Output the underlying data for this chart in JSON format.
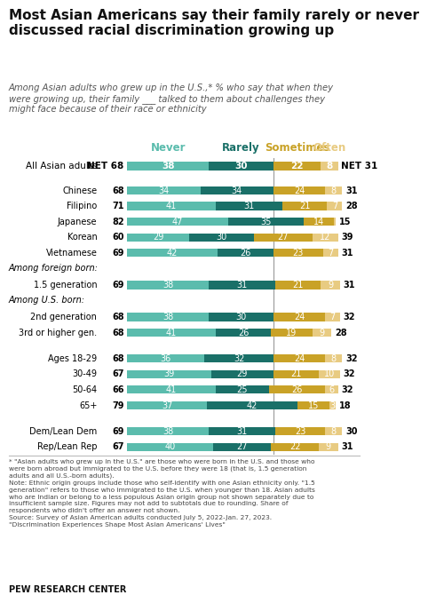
{
  "title": "Most Asian Americans say their family rarely or never\ndiscussed racial discrimination growing up",
  "subtitle": "Among Asian adults who grew up in the U.S.,* % who say that when they\nwere growing up, their family ___ talked to them about challenges they\nmight face because of their race or ethnicity",
  "categories": [
    "All Asian adults",
    "Chinese",
    "Filipino",
    "Japanese",
    "Korean",
    "Vietnamese",
    "1.5 generation",
    "2nd generation",
    "3rd or higher gen.",
    "Ages 18-29",
    "30-49",
    "50-64",
    "65+",
    "Dem/Lean Dem",
    "Rep/Lean Rep"
  ],
  "net_left": [
    68,
    68,
    71,
    82,
    60,
    69,
    69,
    68,
    68,
    68,
    67,
    66,
    79,
    69,
    67
  ],
  "net_right": [
    31,
    31,
    28,
    15,
    39,
    31,
    31,
    32,
    28,
    32,
    32,
    32,
    18,
    30,
    31
  ],
  "never": [
    38,
    34,
    41,
    47,
    29,
    42,
    38,
    38,
    41,
    36,
    39,
    41,
    37,
    38,
    40
  ],
  "rarely": [
    30,
    34,
    31,
    35,
    30,
    26,
    31,
    30,
    26,
    32,
    29,
    25,
    42,
    31,
    27
  ],
  "sometimes": [
    22,
    24,
    21,
    14,
    27,
    23,
    21,
    24,
    19,
    24,
    21,
    26,
    15,
    23,
    22
  ],
  "often": [
    8,
    8,
    7,
    1,
    12,
    7,
    9,
    7,
    9,
    8,
    10,
    6,
    3,
    8,
    9
  ],
  "color_never": "#5bbcad",
  "color_rarely": "#1a7068",
  "color_sometimes": "#c9a227",
  "color_often": "#e8cb82",
  "background_color": "#ffffff",
  "notes_line1": "* \"Asian adults who grew up in the U.S.\" are those who were born in the U.S. and those who",
  "notes_line2": "were born abroad but immigrated to the U.S. before they were 18 (that is, 1.5 generation",
  "notes_line3": "adults and all U.S.-born adults).",
  "notes_line4": "Note: Ethnic origin groups include those who self-identify with one Asian ethnicity only. \"1.5",
  "notes_line5": "generation\" refers to those who immigrated to the U.S. when younger than 18. Asian adults",
  "notes_line6": "who are Indian or belong to a less populous Asian origin group not shown separately due to",
  "notes_line7": "insufficient sample size. Figures may not add to subtotals due to rounding. Share of",
  "notes_line8": "respondents who didn't offer an answer not shown.",
  "notes_line9": "Source: Survey of Asian American adults conducted July 5, 2022-Jan. 27, 2023.",
  "notes_line10": "\"Discrimination Experiences Shape Most Asian Americans' Lives\"",
  "pew": "PEW RESEARCH CENTER",
  "section_foreign": "Among foreign born:",
  "section_usborn": "Among U.S. born:",
  "col_never": "Never",
  "col_rarely": "Rarely",
  "col_sometimes": "Sometimes",
  "col_often": "Often"
}
